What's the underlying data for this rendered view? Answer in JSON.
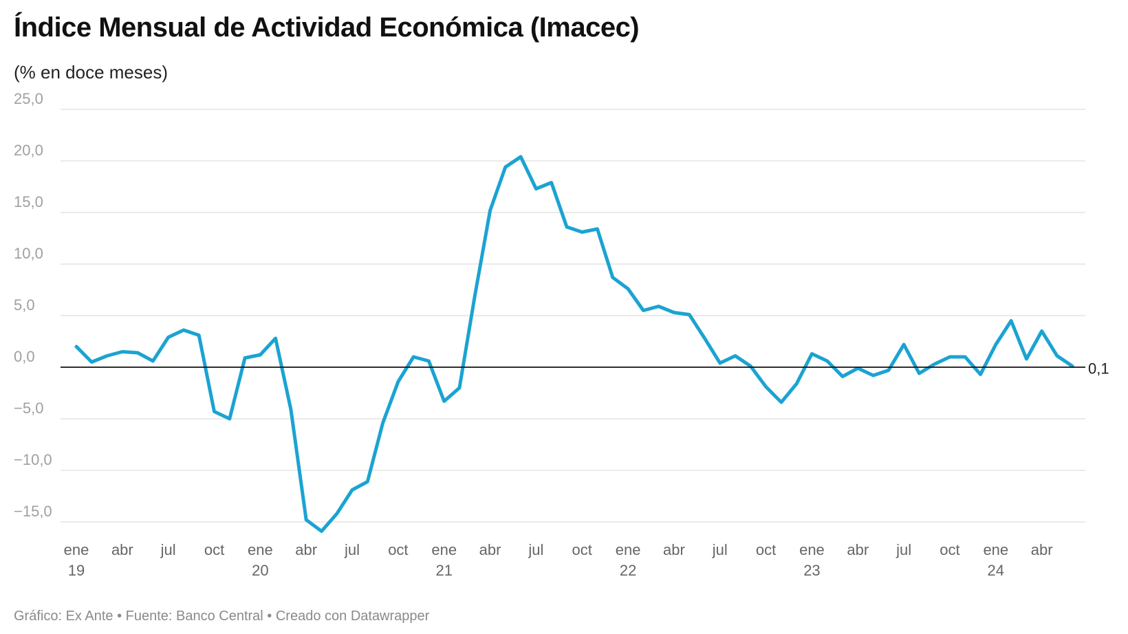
{
  "title": "Índice Mensual de Actividad Económica (Imacec)",
  "subtitle": "(% en doce meses)",
  "footer": "Gráfico: Ex Ante • Fuente: Banco Central • Creado con Datawrapper",
  "colors": {
    "series": "#1ba3d2",
    "zero_line": "#111111",
    "grid": "#e3e3e3"
  },
  "chart_data": {
    "type": "line",
    "title": "Índice Mensual de Actividad Económica (Imacec)",
    "subtitle": "(% en doce meses)",
    "ylim": [
      -15,
      25
    ],
    "yticks": [
      25,
      20,
      15,
      10,
      5,
      0,
      -5,
      -10,
      -15
    ],
    "ytick_labels": [
      "25,0",
      "20,0",
      "15,0",
      "10,0",
      "5,0",
      "0,0",
      "−5,0",
      "−10,0",
      "−15,0"
    ],
    "grid": true,
    "x_tick_labels": [
      {
        "month": "ene",
        "year": "19"
      },
      {
        "month": "abr",
        "year": ""
      },
      {
        "month": "jul",
        "year": ""
      },
      {
        "month": "oct",
        "year": ""
      },
      {
        "month": "ene",
        "year": "20"
      },
      {
        "month": "abr",
        "year": ""
      },
      {
        "month": "jul",
        "year": ""
      },
      {
        "month": "oct",
        "year": ""
      },
      {
        "month": "ene",
        "year": "21"
      },
      {
        "month": "abr",
        "year": ""
      },
      {
        "month": "jul",
        "year": ""
      },
      {
        "month": "oct",
        "year": ""
      },
      {
        "month": "ene",
        "year": "22"
      },
      {
        "month": "abr",
        "year": ""
      },
      {
        "month": "jul",
        "year": ""
      },
      {
        "month": "oct",
        "year": ""
      },
      {
        "month": "ene",
        "year": "23"
      },
      {
        "month": "abr",
        "year": ""
      },
      {
        "month": "jul",
        "year": ""
      },
      {
        "month": "oct",
        "year": ""
      },
      {
        "month": "ene",
        "year": "24"
      },
      {
        "month": "abr",
        "year": ""
      }
    ],
    "x": [
      "2019-01",
      "2019-02",
      "2019-03",
      "2019-04",
      "2019-05",
      "2019-06",
      "2019-07",
      "2019-08",
      "2019-09",
      "2019-10",
      "2019-11",
      "2019-12",
      "2020-01",
      "2020-02",
      "2020-03",
      "2020-04",
      "2020-05",
      "2020-06",
      "2020-07",
      "2020-08",
      "2020-09",
      "2020-10",
      "2020-11",
      "2020-12",
      "2021-01",
      "2021-02",
      "2021-03",
      "2021-04",
      "2021-05",
      "2021-06",
      "2021-07",
      "2021-08",
      "2021-09",
      "2021-10",
      "2021-11",
      "2021-12",
      "2022-01",
      "2022-02",
      "2022-03",
      "2022-04",
      "2022-05",
      "2022-06",
      "2022-07",
      "2022-08",
      "2022-09",
      "2022-10",
      "2022-11",
      "2022-12",
      "2023-01",
      "2023-02",
      "2023-03",
      "2023-04",
      "2023-05",
      "2023-06",
      "2023-07",
      "2023-08",
      "2023-09",
      "2023-10",
      "2023-11",
      "2023-12",
      "2024-01",
      "2024-02",
      "2024-03",
      "2024-04",
      "2024-05",
      "2024-06"
    ],
    "series": [
      {
        "values": [
          2.0,
          0.5,
          1.1,
          1.5,
          1.4,
          0.6,
          2.9,
          3.6,
          3.1,
          -4.3,
          -5.0,
          0.9,
          1.2,
          2.8,
          -4.1,
          -14.8,
          -15.9,
          -14.2,
          -11.9,
          -11.1,
          -5.4,
          -1.4,
          1.0,
          0.6,
          -3.3,
          -2.0,
          6.9,
          15.2,
          19.4,
          20.4,
          17.3,
          17.9,
          13.6,
          13.1,
          13.4,
          8.7,
          7.6,
          5.5,
          5.9,
          5.3,
          5.1,
          2.8,
          0.4,
          1.1,
          0.1,
          -1.9,
          -3.4,
          -1.6,
          1.3,
          0.6,
          -0.9,
          -0.1,
          -0.8,
          -0.3,
          2.2,
          -0.6,
          0.3,
          1.0,
          1.0,
          -0.7,
          2.2,
          4.5,
          0.8,
          3.5,
          1.1,
          0.1
        ]
      }
    ],
    "end_label": "0,1"
  }
}
